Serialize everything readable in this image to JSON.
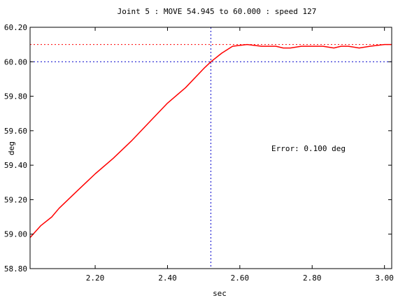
{
  "chart_data": {
    "type": "line",
    "title": "Joint 5 : MOVE 54.945 to 60.000 : speed 127",
    "xlabel": "sec",
    "ylabel": "deg",
    "xlim": [
      2.02,
      3.02
    ],
    "ylim": [
      58.8,
      60.2
    ],
    "x_ticks": [
      "2.20",
      "2.40",
      "2.60",
      "2.80",
      "3.00"
    ],
    "y_ticks": [
      "60.20",
      "60.00",
      "59.80",
      "59.60",
      "59.40",
      "59.20",
      "59.00",
      "58.80"
    ],
    "annotation": "Error: 0.100 deg",
    "reference_lines": [
      {
        "axis": "y",
        "value": 60.1,
        "color": "#ff0000",
        "style": "dotted"
      },
      {
        "axis": "y",
        "value": 60.0,
        "color": "#0000cc",
        "style": "dotted"
      },
      {
        "axis": "x",
        "value": 2.52,
        "color": "#0000cc",
        "style": "dotted"
      }
    ],
    "series": [
      {
        "color": "#ff0000",
        "x": [
          2.02,
          2.05,
          2.08,
          2.1,
          2.15,
          2.2,
          2.25,
          2.3,
          2.35,
          2.4,
          2.45,
          2.5,
          2.52,
          2.55,
          2.58,
          2.62,
          2.66,
          2.7,
          2.72,
          2.74,
          2.77,
          2.8,
          2.83,
          2.86,
          2.88,
          2.9,
          2.93,
          2.96,
          3.0,
          3.02
        ],
        "y": [
          58.98,
          59.05,
          59.1,
          59.15,
          59.25,
          59.35,
          59.44,
          59.54,
          59.65,
          59.76,
          59.85,
          59.96,
          60.0,
          60.05,
          60.09,
          60.1,
          60.09,
          60.09,
          60.08,
          60.08,
          60.09,
          60.09,
          60.09,
          60.08,
          60.09,
          60.09,
          60.08,
          60.09,
          60.1,
          60.1
        ]
      }
    ]
  }
}
